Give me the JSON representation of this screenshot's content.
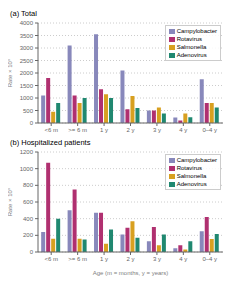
{
  "chart_data": [
    {
      "type": "bar",
      "title": "(a) Total",
      "ylabel": "Rate × 10⁵",
      "categories": [
        "<6 m",
        ">= 6 m",
        "1 y",
        "2 y",
        "3 y",
        "4 y",
        "0–4 y"
      ],
      "series": [
        {
          "name": "Campylobacter",
          "color": "#8888bb",
          "values": [
            1100,
            3100,
            3550,
            2100,
            500,
            220,
            1750
          ]
        },
        {
          "name": "Rotavirus",
          "color": "#b03070",
          "values": [
            1800,
            1100,
            1350,
            550,
            500,
            100,
            800
          ]
        },
        {
          "name": "Salmonella",
          "color": "#d8a020",
          "values": [
            450,
            800,
            1150,
            1080,
            620,
            380,
            800
          ]
        },
        {
          "name": "Adenovirus",
          "color": "#208870",
          "values": [
            800,
            1000,
            1000,
            600,
            380,
            230,
            620
          ]
        }
      ],
      "ylim": [
        0,
        4000
      ],
      "yticks": [
        0,
        500,
        1000,
        1500,
        2000,
        2500,
        3000,
        3500,
        4000
      ],
      "grid": true,
      "legend": "upper right"
    },
    {
      "type": "bar",
      "title": "(b) Hospitalized patients",
      "xlabel": "Age  (m = months, y = years)",
      "ylabel": "Rate × 10⁵",
      "categories": [
        "<6 m",
        ">= 6 m",
        "1 y",
        "2 y",
        "3 y",
        "4 y",
        "0–4 y"
      ],
      "series": [
        {
          "name": "Campylobacter",
          "color": "#8888bb",
          "values": [
            240,
            500,
            470,
            210,
            130,
            45,
            250
          ]
        },
        {
          "name": "Rotavirus",
          "color": "#b03070",
          "values": [
            1070,
            750,
            470,
            290,
            300,
            80,
            420
          ]
        },
        {
          "name": "Salmonella",
          "color": "#d8a020",
          "values": [
            160,
            160,
            100,
            370,
            80,
            30,
            155
          ]
        },
        {
          "name": "Adenovirus",
          "color": "#208870",
          "values": [
            400,
            150,
            270,
            170,
            210,
            130,
            215
          ]
        }
      ],
      "ylim": [
        0,
        1200
      ],
      "yticks": [
        0,
        200,
        400,
        600,
        800,
        1000,
        1200
      ],
      "grid": true,
      "legend": "upper right"
    }
  ]
}
